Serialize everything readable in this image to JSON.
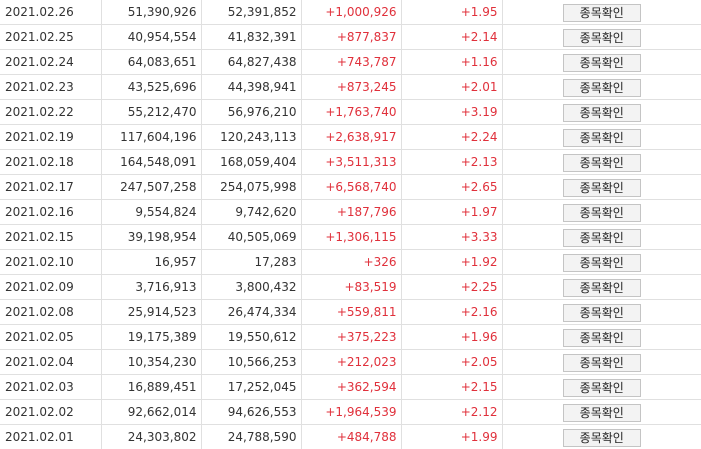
{
  "table": {
    "button_label": "종목확인",
    "up_color": "#e0303b",
    "rows": [
      {
        "date": "2021.02.26",
        "value_a": "51,390,926",
        "value_b": "52,391,852",
        "change": "+1,000,926",
        "rate": "+1.95"
      },
      {
        "date": "2021.02.25",
        "value_a": "40,954,554",
        "value_b": "41,832,391",
        "change": "+877,837",
        "rate": "+2.14"
      },
      {
        "date": "2021.02.24",
        "value_a": "64,083,651",
        "value_b": "64,827,438",
        "change": "+743,787",
        "rate": "+1.16"
      },
      {
        "date": "2021.02.23",
        "value_a": "43,525,696",
        "value_b": "44,398,941",
        "change": "+873,245",
        "rate": "+2.01"
      },
      {
        "date": "2021.02.22",
        "value_a": "55,212,470",
        "value_b": "56,976,210",
        "change": "+1,763,740",
        "rate": "+3.19"
      },
      {
        "date": "2021.02.19",
        "value_a": "117,604,196",
        "value_b": "120,243,113",
        "change": "+2,638,917",
        "rate": "+2.24"
      },
      {
        "date": "2021.02.18",
        "value_a": "164,548,091",
        "value_b": "168,059,404",
        "change": "+3,511,313",
        "rate": "+2.13"
      },
      {
        "date": "2021.02.17",
        "value_a": "247,507,258",
        "value_b": "254,075,998",
        "change": "+6,568,740",
        "rate": "+2.65"
      },
      {
        "date": "2021.02.16",
        "value_a": "9,554,824",
        "value_b": "9,742,620",
        "change": "+187,796",
        "rate": "+1.97"
      },
      {
        "date": "2021.02.15",
        "value_a": "39,198,954",
        "value_b": "40,505,069",
        "change": "+1,306,115",
        "rate": "+3.33"
      },
      {
        "date": "2021.02.10",
        "value_a": "16,957",
        "value_b": "17,283",
        "change": "+326",
        "rate": "+1.92"
      },
      {
        "date": "2021.02.09",
        "value_a": "3,716,913",
        "value_b": "3,800,432",
        "change": "+83,519",
        "rate": "+2.25"
      },
      {
        "date": "2021.02.08",
        "value_a": "25,914,523",
        "value_b": "26,474,334",
        "change": "+559,811",
        "rate": "+2.16"
      },
      {
        "date": "2021.02.05",
        "value_a": "19,175,389",
        "value_b": "19,550,612",
        "change": "+375,223",
        "rate": "+1.96"
      },
      {
        "date": "2021.02.04",
        "value_a": "10,354,230",
        "value_b": "10,566,253",
        "change": "+212,023",
        "rate": "+2.05"
      },
      {
        "date": "2021.02.03",
        "value_a": "16,889,451",
        "value_b": "17,252,045",
        "change": "+362,594",
        "rate": "+2.15"
      },
      {
        "date": "2021.02.02",
        "value_a": "92,662,014",
        "value_b": "94,626,553",
        "change": "+1,964,539",
        "rate": "+2.12"
      },
      {
        "date": "2021.02.01",
        "value_a": "24,303,802",
        "value_b": "24,788,590",
        "change": "+484,788",
        "rate": "+1.99"
      }
    ]
  }
}
